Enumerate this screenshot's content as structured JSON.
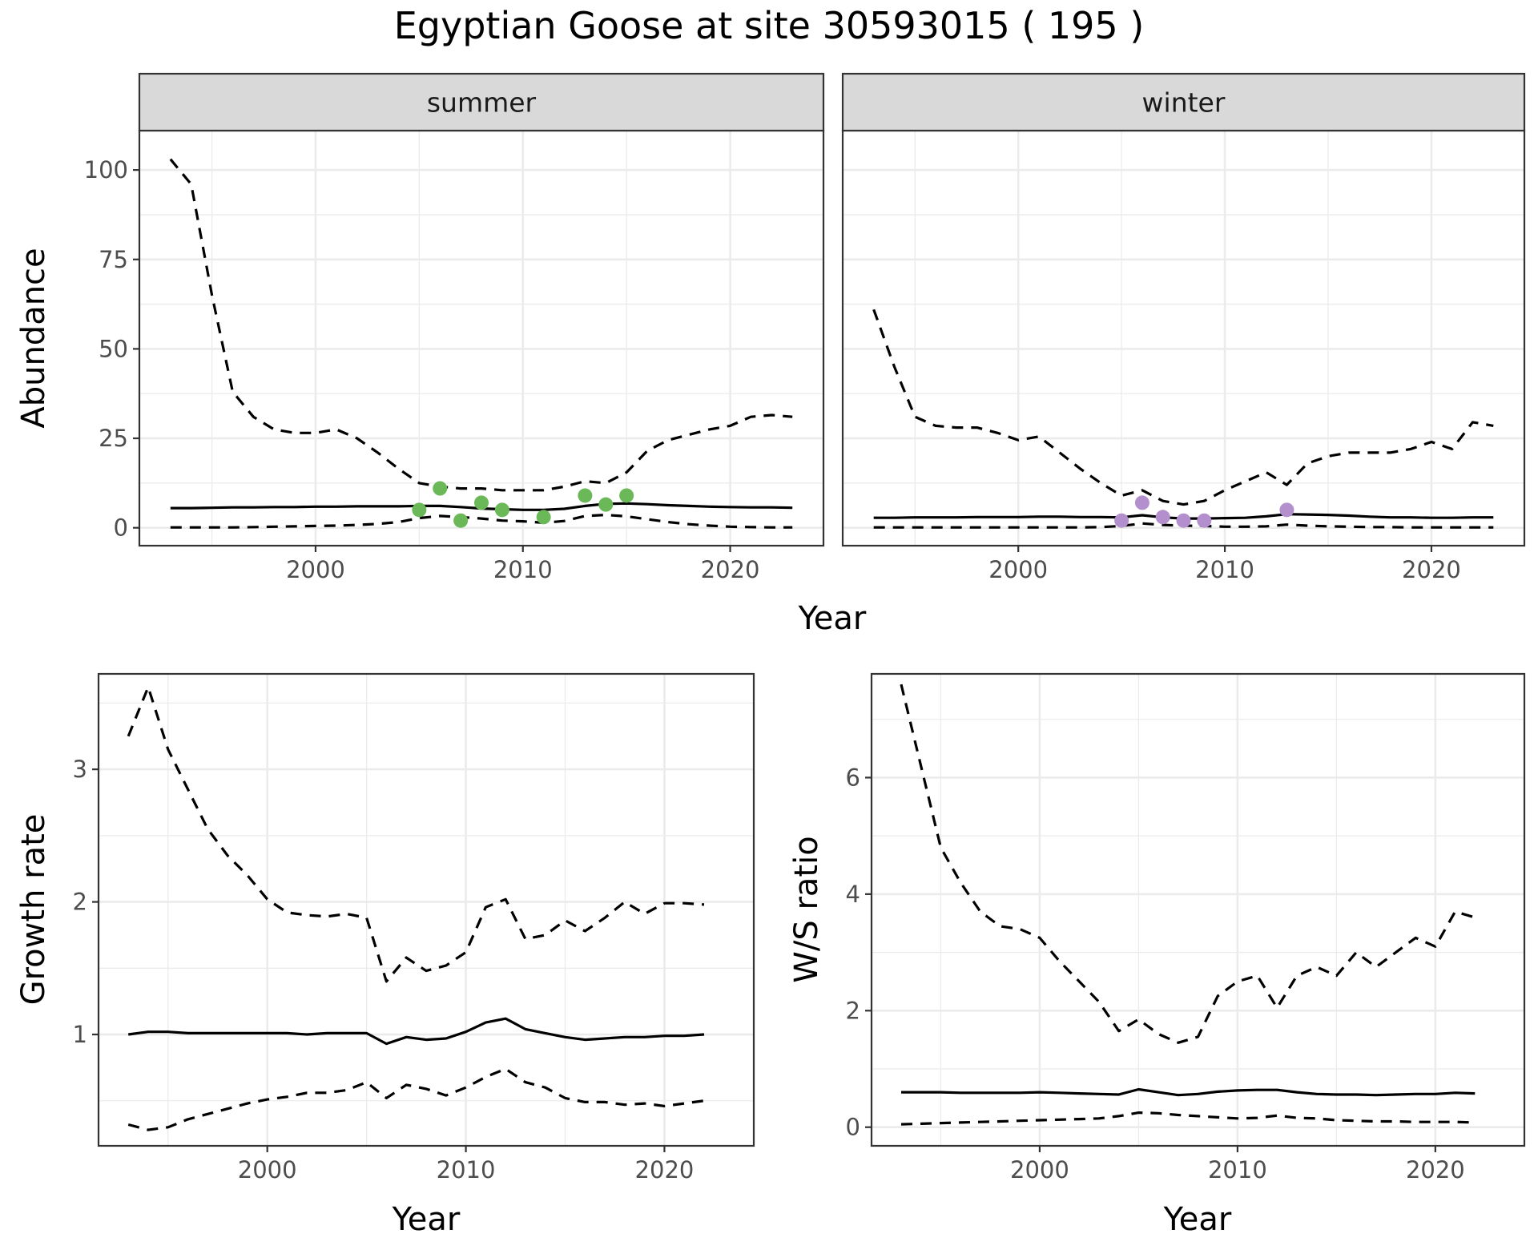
{
  "title": "Egyptian Goose at site 30593015 ( 195 )",
  "colors": {
    "summer_points": "#6ab857",
    "winter_points": "#b38fce"
  },
  "chart_data": [
    {
      "type": "line",
      "facet": "summer",
      "xlabel": "Year",
      "ylabel": "Abundance",
      "xlim": [
        1991.5,
        2024.5
      ],
      "ylim": [
        -5,
        111
      ],
      "xticks": [
        2000,
        2010,
        2020
      ],
      "yticks": [
        0,
        25,
        50,
        75,
        100
      ],
      "grid": true,
      "x": [
        1993,
        1994,
        1995,
        1996,
        1997,
        1998,
        1999,
        2000,
        2001,
        2002,
        2003,
        2004,
        2005,
        2006,
        2007,
        2008,
        2009,
        2010,
        2011,
        2012,
        2013,
        2014,
        2015,
        2016,
        2017,
        2018,
        2019,
        2020,
        2021,
        2022,
        2023
      ],
      "series": [
        {
          "role": "estimate",
          "values": [
            5.5,
            5.5,
            5.6,
            5.7,
            5.7,
            5.8,
            5.8,
            5.9,
            5.9,
            6.0,
            6.0,
            6.0,
            6.1,
            6.1,
            5.8,
            5.4,
            5.2,
            5.0,
            5.0,
            5.3,
            6.1,
            6.7,
            6.8,
            6.6,
            6.3,
            6.1,
            5.9,
            5.8,
            5.7,
            5.7,
            5.6
          ]
        },
        {
          "role": "upper",
          "values": [
            103,
            96,
            65,
            38,
            31,
            27.5,
            26.5,
            26.5,
            27.5,
            25,
            21,
            16.5,
            12.5,
            11.5,
            11,
            11,
            10.5,
            10.5,
            10.5,
            11.5,
            13,
            12.5,
            15.5,
            21.5,
            24.5,
            26,
            27.5,
            28.5,
            31,
            31.5,
            31
          ]
        },
        {
          "role": "lower",
          "values": [
            0.1,
            0.1,
            0.1,
            0.1,
            0.2,
            0.3,
            0.4,
            0.5,
            0.6,
            0.8,
            1.1,
            1.6,
            2.7,
            3.3,
            3.0,
            2.6,
            2.0,
            1.8,
            1.4,
            1.9,
            3.3,
            3.6,
            3.2,
            2.4,
            1.6,
            1.0,
            0.6,
            0.3,
            0.2,
            0.1,
            0.1
          ]
        }
      ],
      "points": {
        "x": [
          2005,
          2006,
          2007,
          2008,
          2009,
          2011,
          2013,
          2014,
          2015
        ],
        "y": [
          5,
          11,
          2,
          7,
          5,
          3,
          9,
          6.5,
          9
        ]
      }
    },
    {
      "type": "line",
      "facet": "winter",
      "xlabel": "Year",
      "ylabel": "Abundance",
      "xlim": [
        1991.5,
        2024.5
      ],
      "ylim": [
        -5,
        111
      ],
      "xticks": [
        2000,
        2010,
        2020
      ],
      "yticks": [
        0,
        25,
        50,
        75,
        100
      ],
      "grid": true,
      "x": [
        1993,
        1994,
        1995,
        1996,
        1997,
        1998,
        1999,
        2000,
        2001,
        2002,
        2003,
        2004,
        2005,
        2006,
        2007,
        2008,
        2009,
        2010,
        2011,
        2012,
        2013,
        2014,
        2015,
        2016,
        2017,
        2018,
        2019,
        2020,
        2021,
        2022,
        2023
      ],
      "series": [
        {
          "role": "estimate",
          "values": [
            2.8,
            2.8,
            2.9,
            2.9,
            2.9,
            3.0,
            3.0,
            3.0,
            3.1,
            3.1,
            3.0,
            3.0,
            2.9,
            3.5,
            2.9,
            2.6,
            2.6,
            2.7,
            2.8,
            3.2,
            3.8,
            3.7,
            3.6,
            3.4,
            3.1,
            2.9,
            2.9,
            2.8,
            2.8,
            2.9,
            2.9
          ]
        },
        {
          "role": "upper",
          "values": [
            61,
            45,
            31,
            28.5,
            28,
            28,
            26.5,
            24.5,
            25.5,
            21,
            16.5,
            12.5,
            9,
            10.5,
            7.5,
            6.5,
            7.5,
            10.5,
            13,
            15.5,
            12,
            18,
            20,
            21,
            21,
            21,
            22,
            24,
            22,
            29.5,
            28.5
          ]
        },
        {
          "role": "lower",
          "values": [
            0.1,
            0.1,
            0.1,
            0.1,
            0.1,
            0.1,
            0.1,
            0.1,
            0.1,
            0.1,
            0.1,
            0.2,
            0.5,
            1.2,
            0.8,
            0.6,
            0.5,
            0.3,
            0.3,
            0.4,
            0.9,
            0.6,
            0.4,
            0.3,
            0.2,
            0.2,
            0.1,
            0.1,
            0.1,
            0.1,
            0.1
          ]
        }
      ],
      "points": {
        "x": [
          2005,
          2006,
          2007,
          2008,
          2009,
          2013
        ],
        "y": [
          2,
          7,
          3,
          2,
          2,
          5
        ]
      }
    },
    {
      "type": "line",
      "xlabel": "Year",
      "ylabel": "Growth rate",
      "xlim": [
        1991.5,
        2024.5
      ],
      "ylim": [
        0.16,
        3.72
      ],
      "xticks": [
        2000,
        2010,
        2020
      ],
      "yticks": [
        1,
        2,
        3
      ],
      "grid": true,
      "x": [
        1993,
        1994,
        1995,
        1996,
        1997,
        1998,
        1999,
        2000,
        2001,
        2002,
        2003,
        2004,
        2005,
        2006,
        2007,
        2008,
        2009,
        2010,
        2011,
        2012,
        2013,
        2014,
        2015,
        2016,
        2017,
        2018,
        2019,
        2020,
        2021,
        2022
      ],
      "series": [
        {
          "role": "estimate",
          "values": [
            1.0,
            1.02,
            1.02,
            1.01,
            1.01,
            1.01,
            1.01,
            1.01,
            1.01,
            1.0,
            1.01,
            1.01,
            1.01,
            0.93,
            0.98,
            0.96,
            0.97,
            1.02,
            1.09,
            1.12,
            1.04,
            1.01,
            0.98,
            0.96,
            0.97,
            0.98,
            0.98,
            0.99,
            0.99,
            1.0
          ]
        },
        {
          "role": "upper",
          "values": [
            3.25,
            3.62,
            3.15,
            2.85,
            2.55,
            2.35,
            2.2,
            2.02,
            1.92,
            1.9,
            1.89,
            1.91,
            1.88,
            1.4,
            1.58,
            1.48,
            1.52,
            1.62,
            1.96,
            2.02,
            1.72,
            1.75,
            1.86,
            1.78,
            1.88,
            2.0,
            1.91,
            1.99,
            1.99,
            1.98
          ]
        },
        {
          "role": "lower",
          "values": [
            0.32,
            0.28,
            0.3,
            0.36,
            0.4,
            0.44,
            0.48,
            0.51,
            0.53,
            0.56,
            0.56,
            0.58,
            0.64,
            0.52,
            0.62,
            0.59,
            0.54,
            0.6,
            0.68,
            0.74,
            0.64,
            0.6,
            0.52,
            0.49,
            0.49,
            0.47,
            0.48,
            0.46,
            0.48,
            0.5
          ]
        }
      ]
    },
    {
      "type": "line",
      "xlabel": "Year",
      "ylabel": "W/S ratio",
      "xlim": [
        1991.5,
        2024.5
      ],
      "ylim": [
        -0.32,
        7.78
      ],
      "xticks": [
        2000,
        2010,
        2020
      ],
      "yticks": [
        0,
        2,
        4,
        6
      ],
      "grid": true,
      "x": [
        1993,
        1994,
        1995,
        1996,
        1997,
        1998,
        1999,
        2000,
        2001,
        2002,
        2003,
        2004,
        2005,
        2006,
        2007,
        2008,
        2009,
        2010,
        2011,
        2012,
        2013,
        2014,
        2015,
        2016,
        2017,
        2018,
        2019,
        2020,
        2021,
        2022
      ],
      "series": [
        {
          "role": "estimate",
          "values": [
            0.6,
            0.6,
            0.6,
            0.59,
            0.59,
            0.59,
            0.59,
            0.6,
            0.59,
            0.58,
            0.57,
            0.56,
            0.65,
            0.6,
            0.55,
            0.57,
            0.61,
            0.63,
            0.64,
            0.64,
            0.6,
            0.57,
            0.56,
            0.56,
            0.55,
            0.56,
            0.57,
            0.57,
            0.59,
            0.58
          ]
        },
        {
          "role": "upper",
          "values": [
            7.6,
            6.2,
            4.8,
            4.2,
            3.7,
            3.45,
            3.4,
            3.25,
            2.85,
            2.5,
            2.15,
            1.65,
            1.85,
            1.6,
            1.45,
            1.55,
            2.25,
            2.5,
            2.6,
            2.05,
            2.6,
            2.75,
            2.6,
            3.0,
            2.75,
            3.0,
            3.25,
            3.1,
            3.7,
            3.6
          ]
        },
        {
          "role": "lower",
          "values": [
            0.05,
            0.06,
            0.07,
            0.08,
            0.09,
            0.1,
            0.11,
            0.12,
            0.13,
            0.14,
            0.15,
            0.19,
            0.25,
            0.24,
            0.21,
            0.19,
            0.17,
            0.15,
            0.16,
            0.2,
            0.16,
            0.15,
            0.12,
            0.11,
            0.1,
            0.1,
            0.09,
            0.09,
            0.09,
            0.08
          ]
        }
      ]
    }
  ]
}
